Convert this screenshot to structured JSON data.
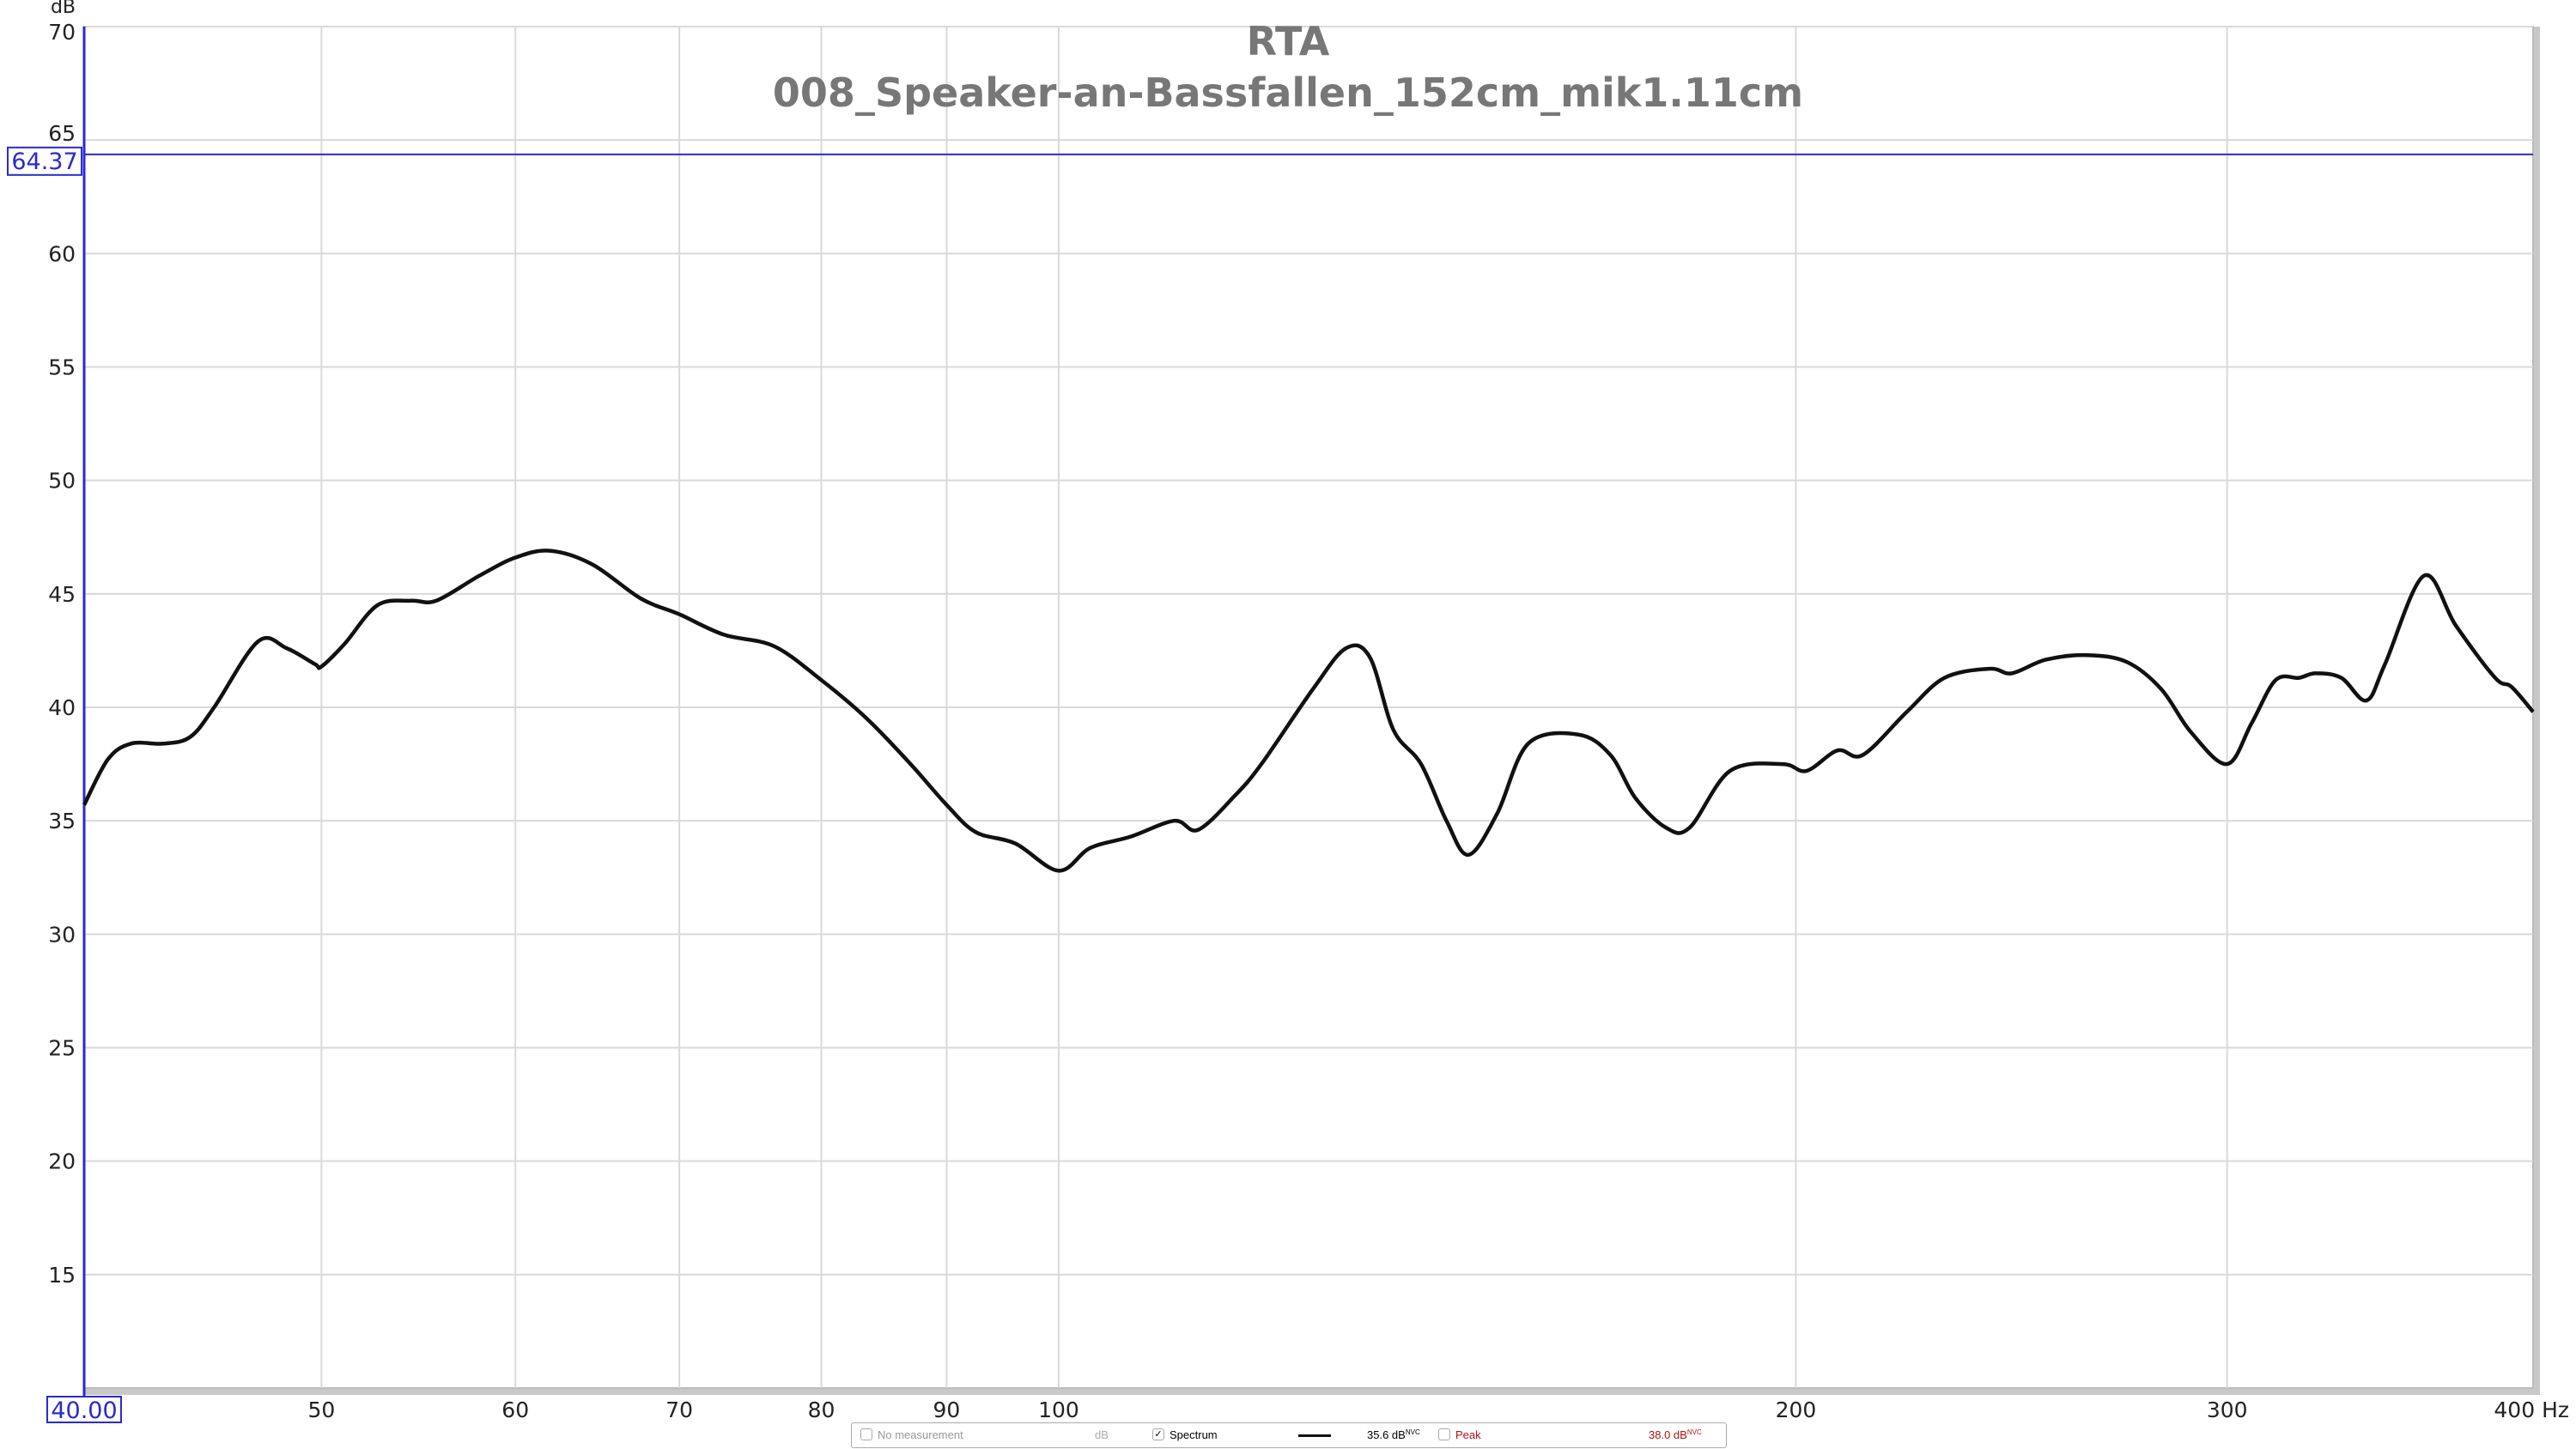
{
  "chart_data": {
    "type": "line",
    "title": "RTA",
    "subtitle": "008_Speaker-an-Bassfallen_152cm_mik1.11cm",
    "ylabel": "dB",
    "xunit": "Hz",
    "xscale": "log",
    "xlim": [
      40,
      400
    ],
    "ylim": [
      10,
      70
    ],
    "grid": true,
    "xticks": [
      50,
      60,
      70,
      80,
      90,
      100,
      200,
      300,
      400
    ],
    "xtick_labels": [
      "50",
      "60",
      "70",
      "80",
      "90",
      "100",
      "200",
      "300",
      "400 Hz"
    ],
    "yticks": [
      15,
      20,
      25,
      30,
      35,
      40,
      45,
      50,
      55,
      60,
      65,
      70
    ],
    "cursor": {
      "x_label": "40.00",
      "y_label": "64.37",
      "y_value": 64.37,
      "color": "#2a2ad0"
    },
    "series": [
      {
        "color": "#111111",
        "x": [
          40,
          40.9,
          41.8,
          43.1,
          44.2,
          45.2,
          47.1,
          48.4,
          49.7,
          50,
          51.1,
          52.7,
          54.4,
          55.7,
          58,
          60,
          62,
          64.5,
          67.5,
          70,
          73,
          76.5,
          80,
          83.5,
          87,
          90,
          92.5,
          96,
          100,
          103,
          107,
          111.5,
          114,
          118,
          121,
          127,
          131,
          134,
          137,
          140.6,
          144,
          147,
          151,
          155.5,
          163,
          168,
          172,
          177,
          181,
          188,
          197.5,
          202,
          208,
          213,
          222,
          230,
          240,
          245,
          253,
          263,
          273,
          282,
          290,
          300,
          307,
          314,
          321,
          326,
          334,
          342,
          348,
          361,
          372,
          386,
          392,
          400
        ],
        "y": [
          35.7,
          37.7,
          38.4,
          38.4,
          38.7,
          40.0,
          42.9,
          42.6,
          41.9,
          41.8,
          42.8,
          44.5,
          44.7,
          44.7,
          45.8,
          46.6,
          46.9,
          46.3,
          44.8,
          44.1,
          43.2,
          42.7,
          41.2,
          39.5,
          37.5,
          35.7,
          34.5,
          34.0,
          32.8,
          33.8,
          34.3,
          35.0,
          34.6,
          36.1,
          37.5,
          40.8,
          42.6,
          42.2,
          39.0,
          37.5,
          35.0,
          33.5,
          35.3,
          38.4,
          38.8,
          37.9,
          36.0,
          34.7,
          34.7,
          37.2,
          37.5,
          37.2,
          38.1,
          37.9,
          39.8,
          41.3,
          41.7,
          41.5,
          42.1,
          42.3,
          42.0,
          40.8,
          38.9,
          37.5,
          39.3,
          41.2,
          41.3,
          41.5,
          41.3,
          40.3,
          41.9,
          45.8,
          43.6,
          41.3,
          40.9,
          39.8
        ]
      }
    ]
  },
  "legend": {
    "no_measurement": "No measurement",
    "unit": "dB",
    "spectrum_label": "Spectrum",
    "spectrum_checked": true,
    "spectrum_value": "35.6 dB",
    "spectrum_unit_sup": "NVC",
    "peak_label": "Peak",
    "peak_checked": false,
    "peak_value": "38.0 dB",
    "peak_unit_sup": "NVC",
    "peak_color": "#b01010"
  }
}
